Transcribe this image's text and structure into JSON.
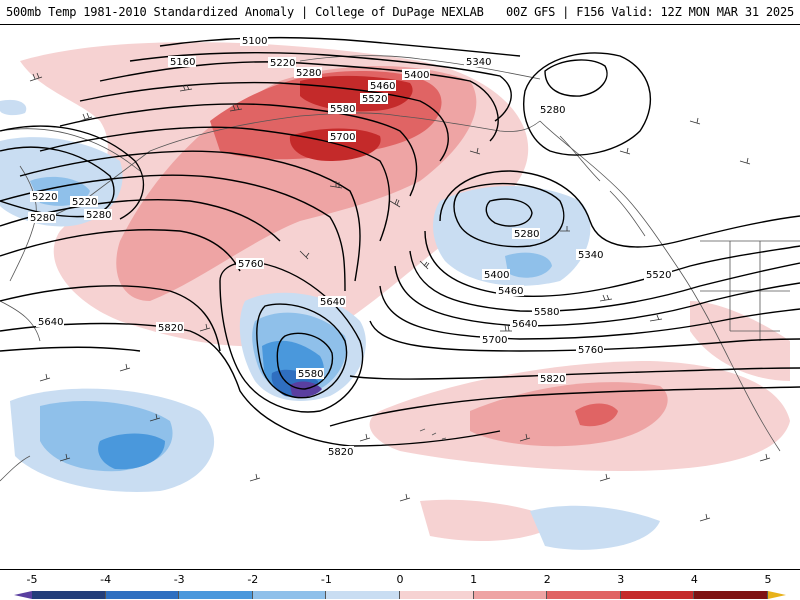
{
  "header": {
    "title_left": "500mb Temp 1981-2010 Standardized Anomaly | College of DuPage NEXLAB",
    "title_right": "00Z GFS | F156 Valid: 12Z MON MAR 31 2025"
  },
  "colorbar": {
    "ticks": [
      "-5",
      "-4",
      "-3",
      "-2",
      "-1",
      "0",
      "1",
      "2",
      "3",
      "4",
      "5"
    ],
    "colors": [
      "#5a3fa0",
      "#233e7a",
      "#2f6fc0",
      "#4a98dc",
      "#8fc0ea",
      "#c9ddf2",
      "#f6d2d2",
      "#eea4a4",
      "#e06464",
      "#c42a2a",
      "#7e1212",
      "#e8b21a"
    ]
  },
  "contour_labels": [
    {
      "id": "c5100",
      "text": "5100"
    },
    {
      "id": "c5160",
      "text": "5160"
    },
    {
      "id": "c5220a",
      "text": "5220"
    },
    {
      "id": "c5280a",
      "text": "5280"
    },
    {
      "id": "c5340a",
      "text": "5340"
    },
    {
      "id": "c5400a",
      "text": "5400"
    },
    {
      "id": "c5460a",
      "text": "5460"
    },
    {
      "id": "c5520a",
      "text": "5520"
    },
    {
      "id": "c5580a",
      "text": "5580"
    },
    {
      "id": "c5700a",
      "text": "5700"
    },
    {
      "id": "c5280b",
      "text": "5280"
    },
    {
      "id": "c5220b",
      "text": "5220"
    },
    {
      "id": "c5220c",
      "text": "5220"
    },
    {
      "id": "c5280c",
      "text": "5280"
    },
    {
      "id": "c5280d",
      "text": "5280"
    },
    {
      "id": "c5280e",
      "text": "5280"
    },
    {
      "id": "c5340b",
      "text": "5340"
    },
    {
      "id": "c5400b",
      "text": "5400"
    },
    {
      "id": "c5460b",
      "text": "5460"
    },
    {
      "id": "c5520b",
      "text": "5520"
    },
    {
      "id": "c5580b",
      "text": "5580"
    },
    {
      "id": "c5640a",
      "text": "5640"
    },
    {
      "id": "c5700b",
      "text": "5700"
    },
    {
      "id": "c5760a",
      "text": "5760"
    },
    {
      "id": "c5820a",
      "text": "5820"
    },
    {
      "id": "c5760b",
      "text": "5760"
    },
    {
      "id": "c5640b",
      "text": "5640"
    },
    {
      "id": "c5580c",
      "text": "5580"
    },
    {
      "id": "c5820b",
      "text": "5820"
    },
    {
      "id": "c5640c",
      "text": "5640"
    },
    {
      "id": "c5820c",
      "text": "5820"
    }
  ]
}
